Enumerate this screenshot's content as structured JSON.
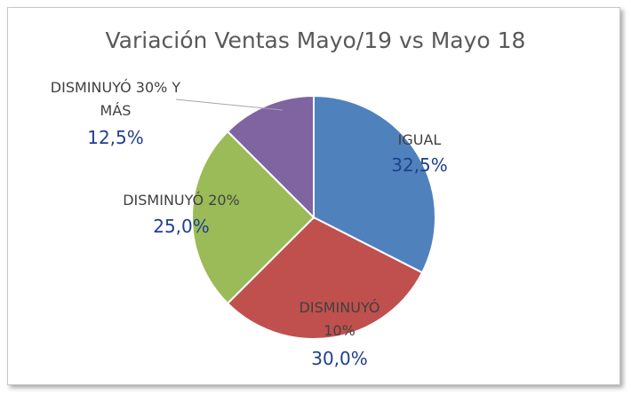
{
  "chart_data": {
    "type": "pie",
    "title": "Variación Ventas Mayo/19 vs Mayo 18",
    "categories": [
      "IGUAL",
      "DISMINUYÓ 10%",
      "DISMINUYÓ 20%",
      "DISMINUYÓ 30% Y MÁS"
    ],
    "values": [
      32.5,
      30.0,
      25.0,
      12.5
    ],
    "value_labels": [
      "32,5%",
      "30,0%",
      "25,0%",
      "12,5%"
    ],
    "colors": [
      "#4f81bd",
      "#c0504d",
      "#9bbb59",
      "#8064a2"
    ],
    "legend": "none"
  }
}
